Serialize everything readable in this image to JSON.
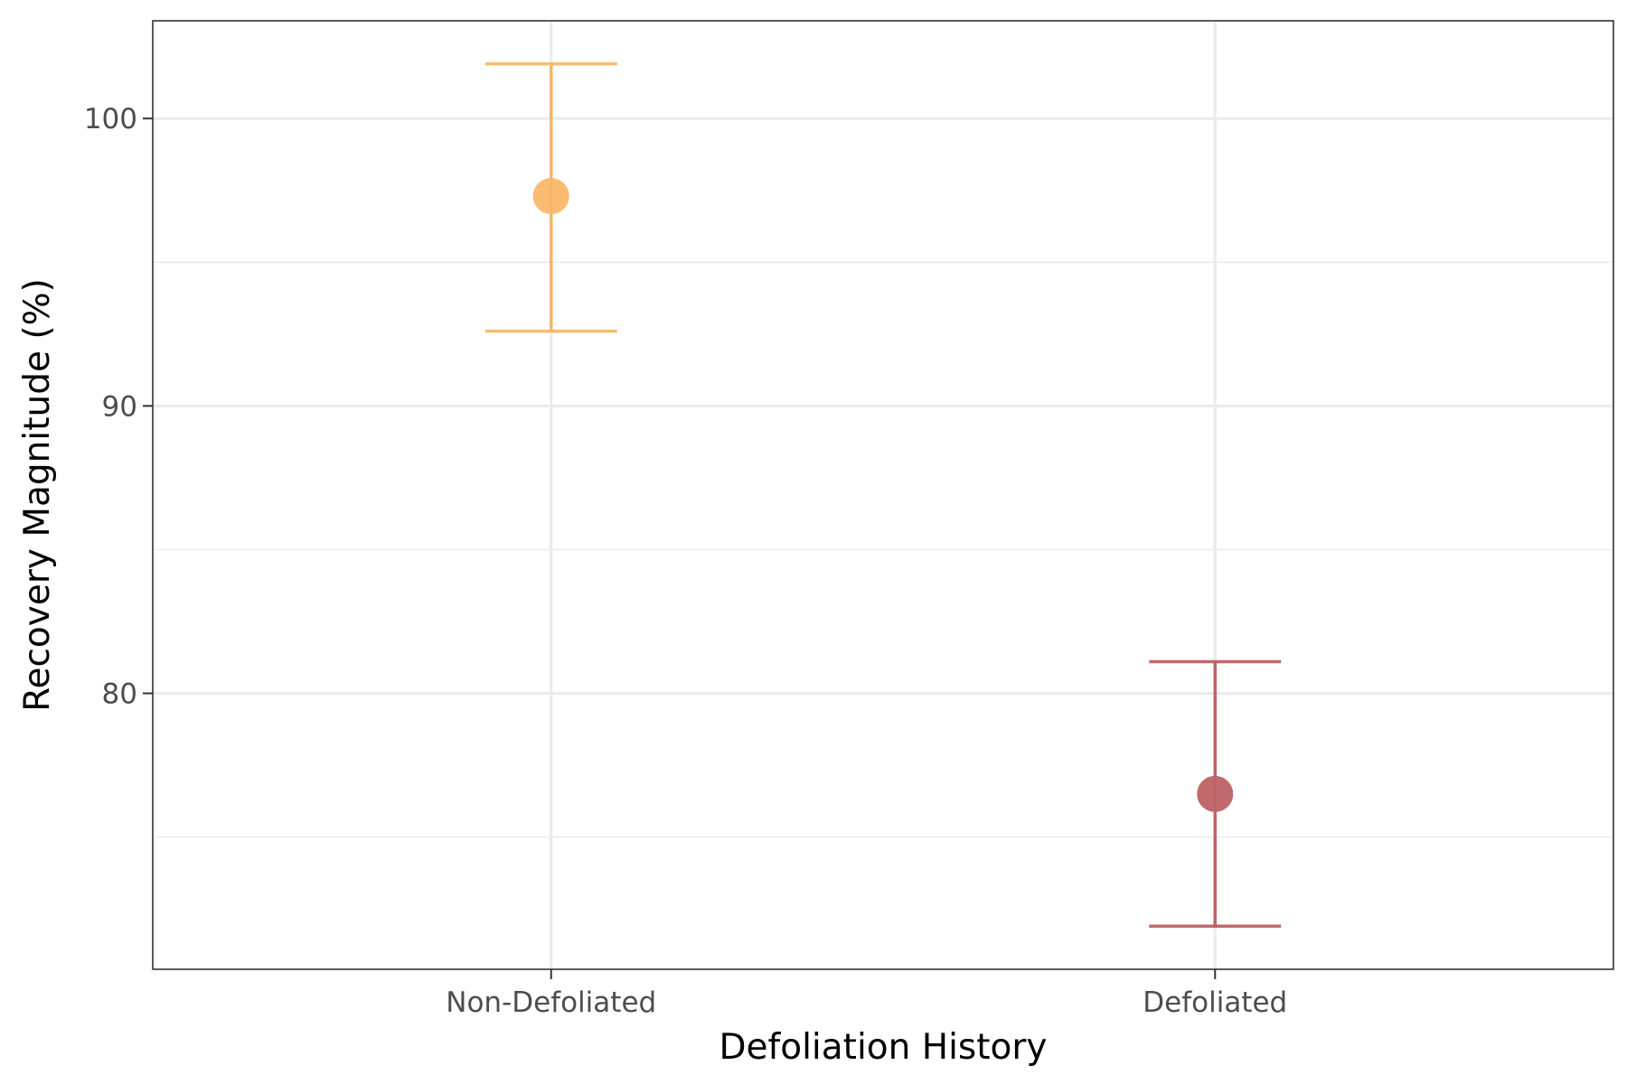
{
  "chart_data": {
    "type": "scatter",
    "title": "",
    "xlabel": "Defoliation History",
    "ylabel": "Recovery Magnitude (%)",
    "categories": [
      "Non-Defoliated",
      "Defoliated"
    ],
    "y_ticks": [
      80,
      90,
      100
    ],
    "ylim": [
      70.4,
      103.4
    ],
    "grid": true,
    "legend": "none",
    "series": [
      {
        "points": [
          {
            "category": "Non-Defoliated",
            "mean": 97.3,
            "lower": 92.6,
            "upper": 101.9,
            "color": "#f7a33a"
          },
          {
            "category": "Defoliated",
            "mean": 76.5,
            "lower": 71.9,
            "upper": 81.1,
            "color": "#a83236"
          }
        ]
      }
    ]
  }
}
